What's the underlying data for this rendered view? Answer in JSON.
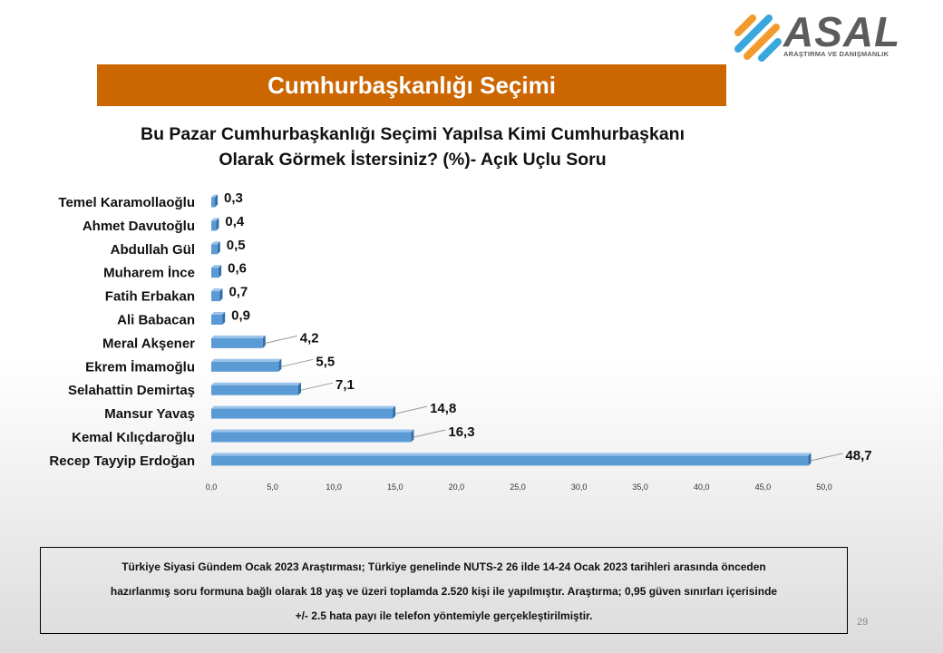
{
  "logo": {
    "brand": "ASAL",
    "tagline": "ARAŞTIRMA VE DANIŞMANLIK",
    "colors": {
      "orange": "#f39a2e",
      "blue": "#3aa7dc",
      "gray": "#5c5c5c"
    }
  },
  "header": {
    "title": "Cumhurbaşkanlığı Seçimi",
    "band_color": "#cc6600"
  },
  "question": {
    "line1": "Bu Pazar Cumhurbaşkanlığı Seçimi Yapılsa Kimi Cumhurbaşkanı",
    "line2": "Olarak Görmek İstersiniz? (%)- Açık Uçlu Soru"
  },
  "chart_data": {
    "type": "bar",
    "orientation": "horizontal",
    "categories": [
      "Temel Karamollaoğlu",
      "Ahmet Davutoğlu",
      "Abdullah Gül",
      "Muharem İnce",
      "Fatih Erbakan",
      "Ali Babacan",
      "Meral Akşener",
      "Ekrem İmamoğlu",
      "Selahattin Demirtaş",
      "Mansur Yavaş",
      "Kemal Kılıçdaroğlu",
      "Recep Tayyip Erdoğan"
    ],
    "values": [
      0.3,
      0.4,
      0.5,
      0.6,
      0.7,
      0.9,
      4.2,
      5.5,
      7.1,
      14.8,
      16.3,
      48.7
    ],
    "value_labels": [
      "0,3",
      "0,4",
      "0,5",
      "0,6",
      "0,7",
      "0,9",
      "4,2",
      "5,5",
      "7,1",
      "14,8",
      "16,3",
      "48,7"
    ],
    "xlim": [
      0,
      50
    ],
    "xticks": [
      "0,0",
      "5,0",
      "10,0",
      "15,0",
      "20,0",
      "25,0",
      "30,0",
      "35,0",
      "40,0",
      "45,0",
      "50,0"
    ],
    "grid": false,
    "bar_color": "#5b9bd5",
    "bar_dark_color": "#2f6da6"
  },
  "footnote": {
    "line1": "Türkiye Siyasi Gündem Ocak 2023 Araştırması; Türkiye genelinde NUTS-2 26 ilde 14-24 Ocak 2023 tarihleri arasında önceden",
    "line2": "hazırlanmış soru formuna bağlı olarak 18 yaş ve üzeri toplamda 2.520 kişi ile yapılmıştır. Araştırma; 0,95 güven sınırları içerisinde",
    "line3": "+/- 2.5  hata payı ile telefon yöntemiyle gerçekleştirilmiştir."
  },
  "page_number": "29"
}
